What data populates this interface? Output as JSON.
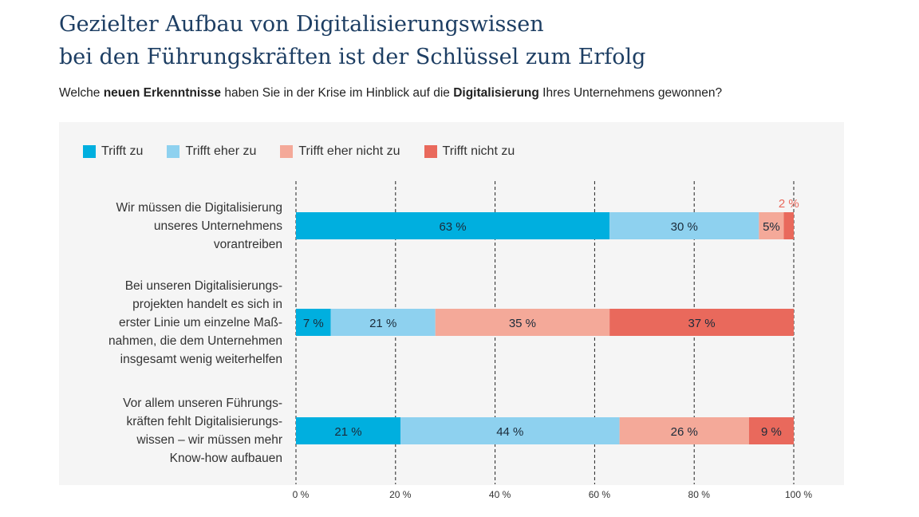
{
  "title_line1": "Gezielter Aufbau von Digitalisierungswissen",
  "title_line2": "bei den Führungskräften ist der Schlüssel zum Erfolg",
  "subtitle": {
    "p1": "Welche ",
    "b1": "neuen Erkenntnisse",
    "p2": " haben Sie in der Krise im Hinblick auf die ",
    "b2": "Digitalisierung",
    "p3": " Ihres Unternehmens gewonnen?"
  },
  "chart_data": {
    "type": "bar",
    "orientation": "horizontal-stacked",
    "categories": [
      "Wir müssen die Digitalisierung unseres Unternehmens vorantreiben",
      "Bei unseren Digitalisierungs-projekten handelt es sich in erster Linie um einzelne Maß-nahmen, die dem Unternehmen insgesamt wenig weiterhelfen",
      "Vor allem unseren Führungs-kräften fehlt Digitalisierungs-wissen – wir müssen mehr Know-how aufbauen"
    ],
    "category_lines": [
      [
        "Wir müssen die Digitalisierung",
        "unseres Unternehmens",
        "vorantreiben"
      ],
      [
        "Bei unseren Digitalisierungs-",
        "projekten handelt es sich in",
        "erster Linie um einzelne Maß-",
        "nahmen, die dem Unternehmen",
        "insgesamt wenig weiterhelfen"
      ],
      [
        "Vor allem unseren Führungs-",
        "kräften fehlt Digitalisierungs-",
        "wissen – wir müssen mehr",
        "Know-how aufbauen"
      ]
    ],
    "series": [
      {
        "name": "Trifft zu",
        "color": "#00afdf",
        "values": [
          63,
          7,
          21
        ],
        "labels": [
          "63 %",
          "7 %",
          "21 %"
        ]
      },
      {
        "name": "Trifft eher zu",
        "color": "#8ed1ef",
        "values": [
          30,
          21,
          44
        ],
        "labels": [
          "30 %",
          "21 %",
          "44 %"
        ]
      },
      {
        "name": "Trifft eher nicht zu",
        "color": "#f4a999",
        "values": [
          5,
          35,
          26
        ],
        "labels": [
          "5%",
          "35 %",
          "26 %"
        ]
      },
      {
        "name": "Trifft nicht zu",
        "color": "#e9695c",
        "values": [
          2,
          37,
          9
        ],
        "labels": [
          "2 %",
          "37 %",
          "9 %"
        ]
      }
    ],
    "xlim": [
      0,
      100
    ],
    "xticks": [
      "0 %",
      "20 %",
      "40 %",
      "60 %",
      "80 %",
      "100 %"
    ],
    "grid": true,
    "legend": "top-left"
  }
}
